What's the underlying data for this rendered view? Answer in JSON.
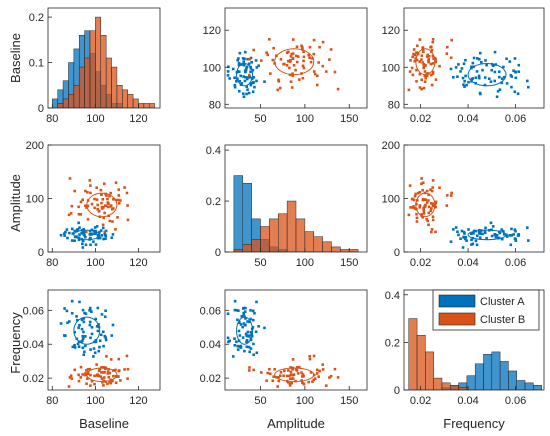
{
  "colors": {
    "cluster_a": "#0072BD",
    "cluster_b": "#D95319"
  },
  "chart_data": {
    "type": "scatter",
    "variables": [
      "Baseline",
      "Amplitude",
      "Frequency"
    ],
    "legend": {
      "entries": [
        "Cluster A",
        "Cluster B"
      ],
      "placement": "inside-top-right of bottom-right panel"
    },
    "ranges": {
      "Baseline": [
        78,
        130
      ],
      "Amplitude": [
        10,
        170
      ],
      "Frequency": [
        0.013,
        0.072
      ]
    },
    "ticks": {
      "Baseline": [
        80,
        100,
        120
      ],
      "Amplitude": [
        50,
        100,
        150
      ],
      "Frequency": [
        0.02,
        0.04,
        0.06
      ]
    },
    "y_ticks": {
      "Baseline": [
        80,
        100,
        120
      ],
      "Amplitude": [
        0,
        100,
        200
      ],
      "Frequency": [
        0.02,
        0.04,
        0.06
      ]
    },
    "y_ranges": {
      "Baseline": [
        78,
        132
      ],
      "Amplitude": [
        0,
        200
      ],
      "Frequency": [
        0.013,
        0.072
      ]
    },
    "clusters": [
      {
        "name": "Cluster A",
        "mean": {
          "Baseline": 96,
          "Amplitude": 32,
          "Frequency": 0.048
        },
        "sd": {
          "Baseline": 6,
          "Amplitude": 9,
          "Frequency": 0.008
        }
      },
      {
        "name": "Cluster B",
        "mean": {
          "Baseline": 103,
          "Amplitude": 88,
          "Frequency": 0.022
        },
        "sd": {
          "Baseline": 7,
          "Amplitude": 22,
          "Frequency": 0.004
        }
      }
    ],
    "histograms": {
      "Baseline": {
        "ylim": [
          0,
          0.22
        ],
        "yticks": [
          0,
          0.1,
          0.2
        ],
        "bin_edges": [
          80,
          82.5,
          85,
          87.5,
          90,
          92.5,
          95,
          97.5,
          100,
          102.5,
          105,
          107.5,
          110,
          112.5,
          115,
          117.5,
          120,
          122.5,
          125,
          127.5,
          130
        ],
        "Cluster A": [
          0.02,
          0.04,
          0.06,
          0.1,
          0.13,
          0.16,
          0.17,
          0.12,
          0.08,
          0.05,
          0.03,
          0.01,
          0.01,
          0,
          0,
          0,
          0,
          0,
          0,
          0
        ],
        "Cluster B": [
          0,
          0.01,
          0.02,
          0.03,
          0.05,
          0.09,
          0.11,
          0.17,
          0.2,
          0.16,
          0.11,
          0.09,
          0.05,
          0.04,
          0.03,
          0.02,
          0.01,
          0.01,
          0.01,
          0
        ]
      },
      "Amplitude": {
        "ylim": [
          0,
          0.42
        ],
        "yticks": [
          0,
          0.2,
          0.4
        ],
        "bin_edges": [
          20,
          30,
          40,
          50,
          60,
          70,
          80,
          90,
          100,
          110,
          120,
          130,
          140,
          150,
          160,
          170
        ],
        "Cluster A": [
          0.3,
          0.27,
          0.13,
          0.05,
          0.02,
          0.01,
          0,
          0,
          0,
          0,
          0,
          0,
          0,
          0,
          0
        ],
        "Cluster B": [
          0.01,
          0.03,
          0.05,
          0.1,
          0.13,
          0.15,
          0.2,
          0.13,
          0.08,
          0.06,
          0.04,
          0.02,
          0.01,
          0.01,
          0
        ],
        "Cluster B_above_A": [
          0,
          0.02,
          0.03,
          0.07,
          0.12,
          0.14,
          0.2,
          0.13,
          0.08,
          0.06,
          0.04,
          0.02,
          0.01,
          0.01,
          0
        ]
      },
      "Frequency": {
        "ylim": [
          0,
          0.42
        ],
        "yticks": [
          0,
          0.2,
          0.4
        ],
        "bin_edges": [
          0.015,
          0.0185,
          0.022,
          0.0255,
          0.029,
          0.0325,
          0.036,
          0.0395,
          0.043,
          0.0465,
          0.05,
          0.0535,
          0.057,
          0.0605,
          0.064,
          0.0675,
          0.071
        ],
        "Cluster A": [
          0,
          0,
          0,
          0,
          0.01,
          0.02,
          0.03,
          0.06,
          0.11,
          0.15,
          0.16,
          0.12,
          0.08,
          0.04,
          0.03,
          0.02
        ],
        "Cluster B": [
          0.3,
          0.23,
          0.16,
          0.05,
          0.03,
          0.02,
          0.01,
          0,
          0,
          0,
          0,
          0,
          0,
          0,
          0,
          0
        ]
      }
    }
  }
}
